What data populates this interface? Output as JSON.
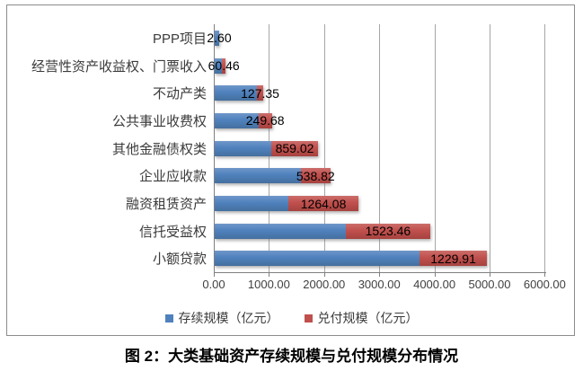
{
  "title": "图 2：大类基础资产存续规模与兑付规模分布情况",
  "chart_data": {
    "type": "bar",
    "orientation": "horizontal",
    "stacked": true,
    "categories": [
      "PPP项目",
      "经营性资产收益权、门票收入",
      "不动产类",
      "公共事业收费权",
      "其他金融债权类",
      "企业应收款",
      "融资租赁资产",
      "信托受益权",
      "小额贷款"
    ],
    "series": [
      {
        "name": "存续规模（亿元）",
        "color": "#4f81bd",
        "values": [
          80,
          135,
          760,
          790,
          1020,
          1560,
          1340,
          2380,
          3710
        ],
        "values_estimated": true
      },
      {
        "name": "兑付规模（亿元）",
        "color": "#c0504d",
        "values": [
          2.6,
          60.46,
          127.35,
          249.68,
          859.02,
          538.82,
          1264.08,
          1523.46,
          1229.91
        ],
        "data_labels": [
          "2.60",
          "60.46",
          "127.35",
          "249.68",
          "859.02",
          "538.82",
          "1264.08",
          "1523.46",
          "1229.91"
        ]
      }
    ],
    "xlim": [
      0,
      6000
    ],
    "x_ticks": [
      "0.00",
      "1000.00",
      "2000.00",
      "3000.00",
      "4000.00",
      "5000.00",
      "6000.00"
    ],
    "x_tick_values": [
      0,
      1000,
      2000,
      3000,
      4000,
      5000,
      6000
    ],
    "grid": "vertical",
    "legend_position": "bottom"
  },
  "colors": {
    "series_blue": "#4f81bd",
    "series_red": "#c0504d",
    "axis": "#808080",
    "gridline": "#a6a6a6",
    "chart_border": "#8c8c8c",
    "data_label_text": "#000000",
    "category_text": "#3b3b3b"
  }
}
